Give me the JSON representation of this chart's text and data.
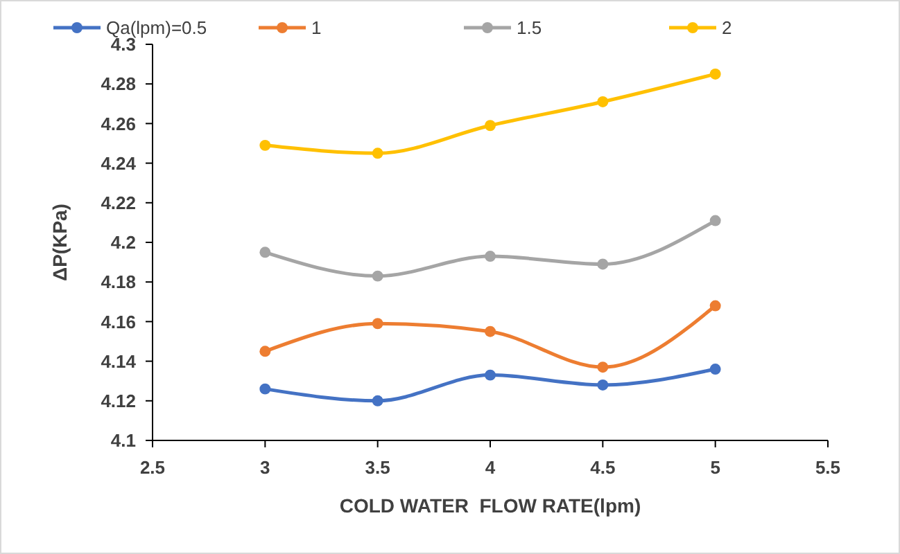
{
  "chart_data": {
    "type": "line",
    "xlabel": "COLD WATER  FLOW RATE(lpm)",
    "ylabel": "ΔP(KPa)",
    "x": [
      3,
      3.5,
      4,
      4.5,
      5
    ],
    "series": [
      {
        "name": "Qa(lpm)=0.5",
        "color": "#4472c4",
        "values": [
          4.126,
          4.12,
          4.133,
          4.128,
          4.136
        ]
      },
      {
        "name": "1",
        "color": "#ed7d31",
        "values": [
          4.145,
          4.159,
          4.155,
          4.137,
          4.168
        ]
      },
      {
        "name": "1.5",
        "color": "#a5a5a5",
        "values": [
          4.195,
          4.183,
          4.193,
          4.189,
          4.211
        ]
      },
      {
        "name": "2",
        "color": "#ffc000",
        "values": [
          4.249,
          4.245,
          4.259,
          4.271,
          4.285
        ]
      }
    ],
    "xlim": [
      2.5,
      5.5
    ],
    "xticks": [
      2.5,
      3,
      3.5,
      4,
      4.5,
      5,
      5.5
    ],
    "ylim": [
      4.1,
      4.3
    ],
    "yticks": [
      4.1,
      4.12,
      4.14,
      4.16,
      4.18,
      4.2,
      4.22,
      4.24,
      4.26,
      4.28,
      4.3
    ],
    "grid": false,
    "legend": "top",
    "marker": "circle",
    "line_style": "solid"
  }
}
